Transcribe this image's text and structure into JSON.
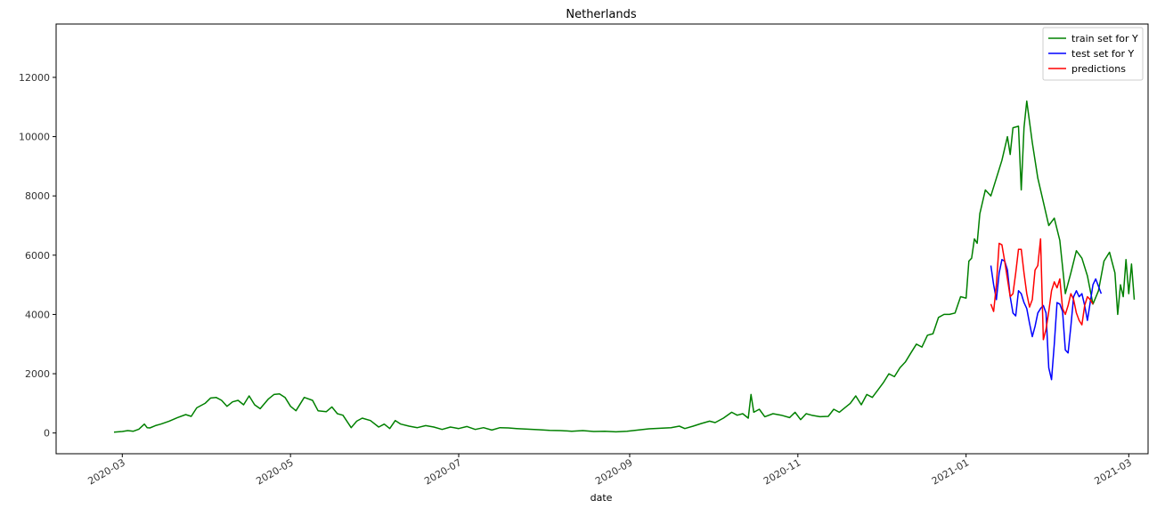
{
  "chart_data": {
    "type": "line",
    "title": "Netherlands",
    "xlabel": "date",
    "ylabel": "",
    "xlim": [
      "2020-02-06",
      "2021-03-08"
    ],
    "ylim": [
      -700,
      13800
    ],
    "x_ticks": [
      "2020-03-01",
      "2020-05-01",
      "2020-07-01",
      "2020-09-01",
      "2020-11-01",
      "2021-01-01",
      "2021-03-01"
    ],
    "x_tick_labels": [
      "2020-03",
      "2020-05",
      "2020-07",
      "2020-09",
      "2020-11",
      "2021-01",
      "2021-03"
    ],
    "y_ticks": [
      0,
      2000,
      4000,
      6000,
      8000,
      10000,
      12000
    ],
    "y_tick_labels": [
      "0",
      "2000",
      "4000",
      "6000",
      "8000",
      "10000",
      "12000"
    ],
    "grid": false,
    "legend_position": "top-right",
    "series": [
      {
        "name": "train set for Y",
        "color": "#008000",
        "points": [
          [
            "2020-02-27",
            30
          ],
          [
            "2020-03-01",
            50
          ],
          [
            "2020-03-03",
            80
          ],
          [
            "2020-03-05",
            60
          ],
          [
            "2020-03-07",
            130
          ],
          [
            "2020-03-09",
            300
          ],
          [
            "2020-03-10",
            180
          ],
          [
            "2020-03-11",
            170
          ],
          [
            "2020-03-13",
            250
          ],
          [
            "2020-03-15",
            300
          ],
          [
            "2020-03-18",
            400
          ],
          [
            "2020-03-21",
            520
          ],
          [
            "2020-03-24",
            620
          ],
          [
            "2020-03-26",
            560
          ],
          [
            "2020-03-28",
            850
          ],
          [
            "2020-03-31",
            1000
          ],
          [
            "2020-04-02",
            1180
          ],
          [
            "2020-04-04",
            1200
          ],
          [
            "2020-04-06",
            1100
          ],
          [
            "2020-04-08",
            900
          ],
          [
            "2020-04-10",
            1050
          ],
          [
            "2020-04-12",
            1100
          ],
          [
            "2020-04-14",
            950
          ],
          [
            "2020-04-16",
            1250
          ],
          [
            "2020-04-18",
            950
          ],
          [
            "2020-04-20",
            820
          ],
          [
            "2020-04-23",
            1150
          ],
          [
            "2020-04-25",
            1300
          ],
          [
            "2020-04-27",
            1320
          ],
          [
            "2020-04-29",
            1200
          ],
          [
            "2020-05-01",
            900
          ],
          [
            "2020-05-03",
            750
          ],
          [
            "2020-05-06",
            1200
          ],
          [
            "2020-05-09",
            1100
          ],
          [
            "2020-05-11",
            750
          ],
          [
            "2020-05-14",
            720
          ],
          [
            "2020-05-16",
            880
          ],
          [
            "2020-05-18",
            650
          ],
          [
            "2020-05-20",
            600
          ],
          [
            "2020-05-23",
            180
          ],
          [
            "2020-05-25",
            400
          ],
          [
            "2020-05-27",
            500
          ],
          [
            "2020-05-30",
            420
          ],
          [
            "2020-06-02",
            200
          ],
          [
            "2020-06-04",
            300
          ],
          [
            "2020-06-06",
            150
          ],
          [
            "2020-06-08",
            420
          ],
          [
            "2020-06-10",
            300
          ],
          [
            "2020-06-13",
            230
          ],
          [
            "2020-06-16",
            180
          ],
          [
            "2020-06-19",
            250
          ],
          [
            "2020-06-22",
            200
          ],
          [
            "2020-06-25",
            120
          ],
          [
            "2020-06-28",
            200
          ],
          [
            "2020-07-01",
            150
          ],
          [
            "2020-07-04",
            220
          ],
          [
            "2020-07-07",
            120
          ],
          [
            "2020-07-10",
            180
          ],
          [
            "2020-07-13",
            100
          ],
          [
            "2020-07-16",
            180
          ],
          [
            "2020-07-19",
            170
          ],
          [
            "2020-07-22",
            150
          ],
          [
            "2020-07-26",
            130
          ],
          [
            "2020-07-30",
            110
          ],
          [
            "2020-08-03",
            90
          ],
          [
            "2020-08-07",
            80
          ],
          [
            "2020-08-11",
            60
          ],
          [
            "2020-08-15",
            80
          ],
          [
            "2020-08-19",
            50
          ],
          [
            "2020-08-23",
            60
          ],
          [
            "2020-08-27",
            40
          ],
          [
            "2020-08-31",
            60
          ],
          [
            "2020-09-04",
            100
          ],
          [
            "2020-09-08",
            140
          ],
          [
            "2020-09-12",
            160
          ],
          [
            "2020-09-16",
            180
          ],
          [
            "2020-09-19",
            230
          ],
          [
            "2020-09-21",
            150
          ],
          [
            "2020-09-24",
            230
          ],
          [
            "2020-09-27",
            320
          ],
          [
            "2020-09-30",
            400
          ],
          [
            "2020-10-02",
            350
          ],
          [
            "2020-10-05",
            500
          ],
          [
            "2020-10-08",
            700
          ],
          [
            "2020-10-10",
            600
          ],
          [
            "2020-10-12",
            650
          ],
          [
            "2020-10-14",
            500
          ],
          [
            "2020-10-15",
            1300
          ],
          [
            "2020-10-16",
            700
          ],
          [
            "2020-10-18",
            800
          ],
          [
            "2020-10-20",
            550
          ],
          [
            "2020-10-23",
            650
          ],
          [
            "2020-10-26",
            600
          ],
          [
            "2020-10-29",
            520
          ],
          [
            "2020-10-31",
            700
          ],
          [
            "2020-11-02",
            450
          ],
          [
            "2020-11-04",
            650
          ],
          [
            "2020-11-06",
            600
          ],
          [
            "2020-11-09",
            550
          ],
          [
            "2020-11-12",
            560
          ],
          [
            "2020-11-14",
            800
          ],
          [
            "2020-11-16",
            700
          ],
          [
            "2020-11-18",
            850
          ],
          [
            "2020-11-20",
            1000
          ],
          [
            "2020-11-22",
            1250
          ],
          [
            "2020-11-24",
            950
          ],
          [
            "2020-11-26",
            1300
          ],
          [
            "2020-11-28",
            1200
          ],
          [
            "2020-11-30",
            1450
          ],
          [
            "2020-12-02",
            1700
          ],
          [
            "2020-12-04",
            2000
          ],
          [
            "2020-12-06",
            1900
          ],
          [
            "2020-12-08",
            2200
          ],
          [
            "2020-12-10",
            2400
          ],
          [
            "2020-12-12",
            2700
          ],
          [
            "2020-12-14",
            3000
          ],
          [
            "2020-12-16",
            2900
          ],
          [
            "2020-12-18",
            3300
          ],
          [
            "2020-12-20",
            3350
          ],
          [
            "2020-12-22",
            3900
          ],
          [
            "2020-12-24",
            4000
          ],
          [
            "2020-12-26",
            4000
          ],
          [
            "2020-12-28",
            4050
          ],
          [
            "2020-12-30",
            4600
          ],
          [
            "2021-01-01",
            4550
          ],
          [
            "2021-01-02",
            5800
          ],
          [
            "2021-01-03",
            5900
          ],
          [
            "2021-01-04",
            6550
          ],
          [
            "2021-01-05",
            6400
          ],
          [
            "2021-01-06",
            7400
          ],
          [
            "2021-01-08",
            8200
          ],
          [
            "2021-01-10",
            8000
          ],
          [
            "2021-01-12",
            8600
          ],
          [
            "2021-01-14",
            9200
          ],
          [
            "2021-01-16",
            10000
          ],
          [
            "2021-01-17",
            9400
          ],
          [
            "2021-01-18",
            10300
          ],
          [
            "2021-01-20",
            10350
          ],
          [
            "2021-01-21",
            8200
          ],
          [
            "2021-01-22",
            10300
          ],
          [
            "2021-01-23",
            11200
          ],
          [
            "2021-01-25",
            9800
          ],
          [
            "2021-01-27",
            8600
          ],
          [
            "2021-01-29",
            7800
          ],
          [
            "2021-01-31",
            7000
          ],
          [
            "2021-02-02",
            7250
          ],
          [
            "2021-02-04",
            6500
          ],
          [
            "2021-02-06",
            4700
          ],
          [
            "2021-02-08",
            5400
          ],
          [
            "2021-02-10",
            6150
          ],
          [
            "2021-02-12",
            5900
          ],
          [
            "2021-02-14",
            5300
          ],
          [
            "2021-02-16",
            4350
          ],
          [
            "2021-02-18",
            4800
          ],
          [
            "2021-02-20",
            5800
          ],
          [
            "2021-02-22",
            6100
          ],
          [
            "2021-02-24",
            5400
          ],
          [
            "2021-02-25",
            4000
          ],
          [
            "2021-02-26",
            5000
          ],
          [
            "2021-02-27",
            4600
          ],
          [
            "2021-02-28",
            5850
          ],
          [
            "2021-03-01",
            4700
          ],
          [
            "2021-03-02",
            5700
          ],
          [
            "2021-03-03",
            4500
          ]
        ]
      },
      {
        "name": "test set for Y",
        "color": "#0000ff",
        "points": [
          [
            "2021-01-10",
            5650
          ],
          [
            "2021-01-11",
            5000
          ],
          [
            "2021-01-12",
            4500
          ],
          [
            "2021-01-13",
            5400
          ],
          [
            "2021-01-14",
            5850
          ],
          [
            "2021-01-15",
            5800
          ],
          [
            "2021-01-16",
            5500
          ],
          [
            "2021-01-17",
            4600
          ],
          [
            "2021-01-18",
            4050
          ],
          [
            "2021-01-19",
            3950
          ],
          [
            "2021-01-20",
            4800
          ],
          [
            "2021-01-21",
            4700
          ],
          [
            "2021-01-22",
            4400
          ],
          [
            "2021-01-23",
            4200
          ],
          [
            "2021-01-24",
            3700
          ],
          [
            "2021-01-25",
            3250
          ],
          [
            "2021-01-26",
            3600
          ],
          [
            "2021-01-27",
            4050
          ],
          [
            "2021-01-28",
            4200
          ],
          [
            "2021-01-29",
            4300
          ],
          [
            "2021-01-30",
            4050
          ],
          [
            "2021-01-31",
            2200
          ],
          [
            "2021-02-01",
            1800
          ],
          [
            "2021-02-02",
            3000
          ],
          [
            "2021-02-03",
            4400
          ],
          [
            "2021-02-04",
            4350
          ],
          [
            "2021-02-05",
            4100
          ],
          [
            "2021-02-06",
            2800
          ],
          [
            "2021-02-07",
            2700
          ],
          [
            "2021-02-08",
            3600
          ],
          [
            "2021-02-09",
            4600
          ],
          [
            "2021-02-10",
            4800
          ],
          [
            "2021-02-11",
            4600
          ],
          [
            "2021-02-12",
            4700
          ],
          [
            "2021-02-13",
            4300
          ],
          [
            "2021-02-14",
            3800
          ],
          [
            "2021-02-15",
            4400
          ],
          [
            "2021-02-16",
            5000
          ],
          [
            "2021-02-17",
            5200
          ],
          [
            "2021-02-18",
            4950
          ],
          [
            "2021-02-19",
            4700
          ]
        ]
      },
      {
        "name": "predictions",
        "color": "#ff0000",
        "points": [
          [
            "2021-01-10",
            4350
          ],
          [
            "2021-01-11",
            4100
          ],
          [
            "2021-01-12",
            5000
          ],
          [
            "2021-01-13",
            6400
          ],
          [
            "2021-01-14",
            6350
          ],
          [
            "2021-01-15",
            5800
          ],
          [
            "2021-01-16",
            5200
          ],
          [
            "2021-01-17",
            4600
          ],
          [
            "2021-01-18",
            4700
          ],
          [
            "2021-01-19",
            5400
          ],
          [
            "2021-01-20",
            6200
          ],
          [
            "2021-01-21",
            6200
          ],
          [
            "2021-01-22",
            5400
          ],
          [
            "2021-01-23",
            4700
          ],
          [
            "2021-01-24",
            4250
          ],
          [
            "2021-01-25",
            4500
          ],
          [
            "2021-01-26",
            5500
          ],
          [
            "2021-01-27",
            5650
          ],
          [
            "2021-01-28",
            6550
          ],
          [
            "2021-01-29",
            3150
          ],
          [
            "2021-01-30",
            3500
          ],
          [
            "2021-01-31",
            4100
          ],
          [
            "2021-02-01",
            4800
          ],
          [
            "2021-02-02",
            5100
          ],
          [
            "2021-02-03",
            4900
          ],
          [
            "2021-02-04",
            5200
          ],
          [
            "2021-02-05",
            4200
          ],
          [
            "2021-02-06",
            4000
          ],
          [
            "2021-02-07",
            4300
          ],
          [
            "2021-02-08",
            4700
          ],
          [
            "2021-02-09",
            4500
          ],
          [
            "2021-02-10",
            4050
          ],
          [
            "2021-02-11",
            3800
          ],
          [
            "2021-02-12",
            3650
          ],
          [
            "2021-02-13",
            4300
          ],
          [
            "2021-02-14",
            4600
          ],
          [
            "2021-02-15",
            4500
          ],
          [
            "2021-02-16",
            4350
          ]
        ]
      }
    ]
  }
}
